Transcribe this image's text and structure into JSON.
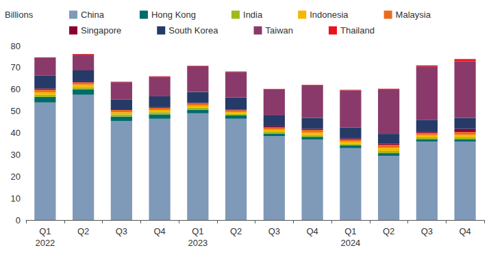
{
  "chart_data": {
    "type": "bar",
    "stacked": true,
    "grid": false,
    "legend": "top",
    "y_label": "Billions",
    "categories": [
      "Q1\n2022",
      "Q2",
      "Q3",
      "Q4",
      "Q1\n2023",
      "Q2",
      "Q3",
      "Q4",
      "Q1\n2024",
      "Q2",
      "Q3",
      "Q4"
    ],
    "ylim": [
      0,
      80
    ],
    "yticks": [
      0,
      10,
      20,
      30,
      40,
      50,
      60,
      70,
      80
    ],
    "series": [
      {
        "name": "China",
        "color": "#7f99b9",
        "values": [
          54,
          57.5,
          45.5,
          46.5,
          49,
          46.5,
          38.5,
          37,
          33,
          29.5,
          36,
          36
        ]
      },
      {
        "name": "Hong Kong",
        "color": "#006b6b",
        "values": [
          2.5,
          2.5,
          2,
          2,
          1.5,
          1.5,
          1.2,
          1.2,
          1.2,
          1.2,
          1,
          1
        ]
      },
      {
        "name": "India",
        "color": "#a3b81b",
        "values": [
          1,
          1,
          1,
          1,
          1,
          0.8,
          0.8,
          0.8,
          0.8,
          1,
          1,
          1
        ]
      },
      {
        "name": "Indonesia",
        "color": "#f5b800",
        "values": [
          1.2,
          1.2,
          1,
          1,
          1,
          0.8,
          1,
          1.2,
          1,
          1.5,
          1,
          1.2
        ]
      },
      {
        "name": "Malaysia",
        "color": "#eb6b1e",
        "values": [
          1.2,
          1,
          1,
          1,
          1,
          0.8,
          1,
          1.2,
          1,
          1.3,
          1,
          1.2
        ]
      },
      {
        "name": "Singapore",
        "color": "#8b0033",
        "values": [
          0.5,
          0.5,
          0.3,
          0.3,
          0.3,
          0.3,
          0.5,
          0.5,
          0.5,
          0.5,
          0.5,
          1.5
        ]
      },
      {
        "name": "South Korea",
        "color": "#253a67",
        "values": [
          6,
          5,
          4.5,
          5,
          5,
          5.5,
          5,
          5,
          5,
          4.5,
          5.5,
          5
        ]
      },
      {
        "name": "Taiwan",
        "color": "#8a3a6a",
        "values": [
          8,
          7.2,
          8,
          9,
          11.8,
          11.8,
          12,
          15,
          17,
          20.5,
          24.5,
          26
        ]
      },
      {
        "name": "Thailand",
        "color": "#e8131b",
        "values": [
          0.3,
          0.3,
          0.2,
          0.2,
          0.2,
          0.2,
          0.2,
          0.2,
          0.3,
          0.3,
          0.5,
          1
        ]
      }
    ]
  }
}
